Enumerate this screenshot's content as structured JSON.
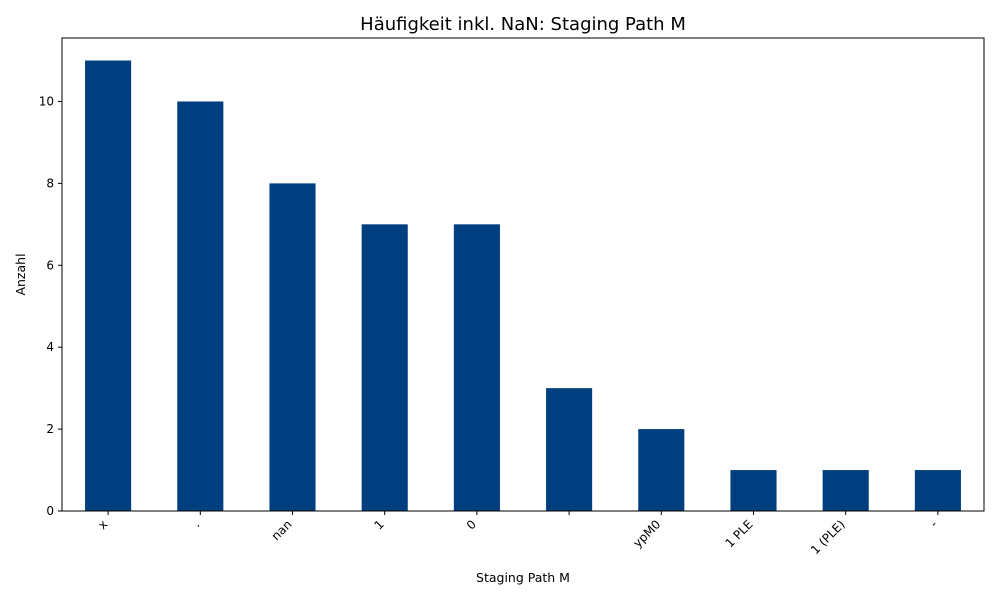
{
  "chart_data": {
    "type": "bar",
    "title": "Häufigkeit inkl. NaN: Staging Path M",
    "xlabel": "Staging Path M",
    "ylabel": "Anzahl",
    "categories": [
      "x",
      ".",
      "nan",
      "1",
      "0",
      "",
      "ypM0",
      "1 PLE",
      "1 (PLE)",
      "-"
    ],
    "values": [
      11,
      10,
      8,
      7,
      7,
      3,
      2,
      1,
      1,
      1
    ],
    "ylim": [
      0,
      11.55
    ],
    "yticks": [
      0,
      2,
      4,
      6,
      8,
      10
    ],
    "bar_color": "#003f7f",
    "grid": false,
    "legend": "none"
  }
}
